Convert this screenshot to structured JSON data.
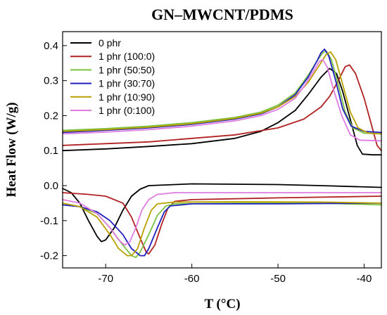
{
  "chart_data": {
    "type": "line",
    "title": "GN–MWCNT/PDMS",
    "xlabel": "T (°C)",
    "ylabel": "Heat Flow (W/g)",
    "xlim": [
      -75,
      -38
    ],
    "ylim": [
      -0.235,
      0.44
    ],
    "xticks": [
      -70,
      -60,
      -50,
      -40
    ],
    "xtick_labels": [
      "-70",
      "-60",
      "-50",
      "-40"
    ],
    "yticks": [
      -0.2,
      -0.1,
      0.0,
      0.1,
      0.2,
      0.3,
      0.4
    ],
    "ytick_labels": [
      "-0.2",
      "-0.1",
      "0.0",
      "0.1",
      "0.2",
      "0.3",
      "0.4"
    ],
    "grid": false,
    "legend": {
      "position": "top-left"
    },
    "series": [
      {
        "name": "0 phr",
        "color": "#000000",
        "heating": [
          [
            -75,
            0.1
          ],
          [
            -70,
            0.105
          ],
          [
            -65,
            0.112
          ],
          [
            -60,
            0.12
          ],
          [
            -55,
            0.135
          ],
          [
            -52,
            0.155
          ],
          [
            -50,
            0.18
          ],
          [
            -48,
            0.215
          ],
          [
            -46.5,
            0.26
          ],
          [
            -45,
            0.31
          ],
          [
            -44,
            0.335
          ],
          [
            -43.2,
            0.32
          ],
          [
            -42.5,
            0.27
          ],
          [
            -41.5,
            0.18
          ],
          [
            -40.8,
            0.115
          ],
          [
            -40.2,
            0.09
          ],
          [
            -39,
            0.088
          ],
          [
            -38,
            0.088
          ]
        ],
        "cooling": [
          [
            -75,
            -0.008
          ],
          [
            -74,
            -0.02
          ],
          [
            -73,
            -0.05
          ],
          [
            -72,
            -0.1
          ],
          [
            -71,
            -0.145
          ],
          [
            -70.5,
            -0.16
          ],
          [
            -70,
            -0.155
          ],
          [
            -69,
            -0.12
          ],
          [
            -68,
            -0.07
          ],
          [
            -67,
            -0.03
          ],
          [
            -66,
            -0.01
          ],
          [
            -65,
            0.0
          ],
          [
            -60,
            0.005
          ],
          [
            -50,
            0.003
          ],
          [
            -45,
            0.0
          ],
          [
            -38,
            -0.005
          ]
        ]
      },
      {
        "name": "1 phr (100:0)",
        "color": "#b22222",
        "heating": [
          [
            -75,
            0.115
          ],
          [
            -70,
            0.12
          ],
          [
            -65,
            0.125
          ],
          [
            -60,
            0.135
          ],
          [
            -55,
            0.145
          ],
          [
            -50,
            0.165
          ],
          [
            -47,
            0.19
          ],
          [
            -45,
            0.225
          ],
          [
            -44,
            0.255
          ],
          [
            -43,
            0.3
          ],
          [
            -42.2,
            0.34
          ],
          [
            -41.7,
            0.345
          ],
          [
            -41,
            0.32
          ],
          [
            -40,
            0.25
          ],
          [
            -39,
            0.16
          ],
          [
            -38.5,
            0.115
          ],
          [
            -38,
            0.1
          ]
        ],
        "cooling": [
          [
            -75,
            -0.02
          ],
          [
            -72,
            -0.025
          ],
          [
            -70,
            -0.03
          ],
          [
            -68,
            -0.05
          ],
          [
            -67,
            -0.09
          ],
          [
            -66,
            -0.15
          ],
          [
            -65.3,
            -0.19
          ],
          [
            -65,
            -0.195
          ],
          [
            -64.3,
            -0.17
          ],
          [
            -63.5,
            -0.11
          ],
          [
            -62.8,
            -0.065
          ],
          [
            -62,
            -0.045
          ],
          [
            -60,
            -0.04
          ],
          [
            -50,
            -0.035
          ],
          [
            -38,
            -0.03
          ]
        ]
      },
      {
        "name": "1 phr (50:50)",
        "color": "#7cc242",
        "heating": [
          [
            -75,
            0.158
          ],
          [
            -70,
            0.163
          ],
          [
            -65,
            0.17
          ],
          [
            -60,
            0.18
          ],
          [
            -55,
            0.195
          ],
          [
            -52,
            0.21
          ],
          [
            -50,
            0.23
          ],
          [
            -48,
            0.265
          ],
          [
            -46.5,
            0.315
          ],
          [
            -45.5,
            0.355
          ],
          [
            -44.8,
            0.38
          ],
          [
            -44.4,
            0.385
          ],
          [
            -43.8,
            0.36
          ],
          [
            -43,
            0.29
          ],
          [
            -42.2,
            0.21
          ],
          [
            -41.3,
            0.165
          ],
          [
            -40,
            0.15
          ],
          [
            -38,
            0.148
          ]
        ],
        "cooling": [
          [
            -75,
            -0.055
          ],
          [
            -73,
            -0.06
          ],
          [
            -71,
            -0.08
          ],
          [
            -69.5,
            -0.12
          ],
          [
            -68,
            -0.17
          ],
          [
            -67,
            -0.2
          ],
          [
            -66.5,
            -0.205
          ],
          [
            -66,
            -0.19
          ],
          [
            -65,
            -0.14
          ],
          [
            -64,
            -0.085
          ],
          [
            -63,
            -0.058
          ],
          [
            -62,
            -0.052
          ],
          [
            -55,
            -0.05
          ],
          [
            -45,
            -0.05
          ],
          [
            -38,
            -0.055
          ]
        ]
      },
      {
        "name": "1 phr (30:70)",
        "color": "#1f1fbf",
        "heating": [
          [
            -75,
            0.152
          ],
          [
            -70,
            0.158
          ],
          [
            -65,
            0.165
          ],
          [
            -60,
            0.175
          ],
          [
            -55,
            0.19
          ],
          [
            -52,
            0.205
          ],
          [
            -50,
            0.225
          ],
          [
            -48,
            0.26
          ],
          [
            -46.5,
            0.31
          ],
          [
            -45.5,
            0.355
          ],
          [
            -45,
            0.38
          ],
          [
            -44.6,
            0.39
          ],
          [
            -44.1,
            0.37
          ],
          [
            -43.3,
            0.3
          ],
          [
            -42.5,
            0.22
          ],
          [
            -41.5,
            0.17
          ],
          [
            -40,
            0.155
          ],
          [
            -38,
            0.152
          ]
        ],
        "cooling": [
          [
            -75,
            -0.055
          ],
          [
            -73,
            -0.06
          ],
          [
            -71,
            -0.075
          ],
          [
            -69.5,
            -0.1
          ],
          [
            -68,
            -0.14
          ],
          [
            -67,
            -0.18
          ],
          [
            -66,
            -0.2
          ],
          [
            -65.5,
            -0.2
          ],
          [
            -65,
            -0.18
          ],
          [
            -64,
            -0.12
          ],
          [
            -63.2,
            -0.075
          ],
          [
            -62.5,
            -0.058
          ],
          [
            -60,
            -0.052
          ],
          [
            -50,
            -0.052
          ],
          [
            -38,
            -0.05
          ]
        ]
      },
      {
        "name": "1 phr (10:90)",
        "color": "#b8a000",
        "heating": [
          [
            -75,
            0.155
          ],
          [
            -70,
            0.16
          ],
          [
            -65,
            0.167
          ],
          [
            -60,
            0.177
          ],
          [
            -55,
            0.192
          ],
          [
            -52,
            0.207
          ],
          [
            -50,
            0.225
          ],
          [
            -48,
            0.255
          ],
          [
            -46.5,
            0.295
          ],
          [
            -45.3,
            0.34
          ],
          [
            -44.4,
            0.375
          ],
          [
            -43.9,
            0.382
          ],
          [
            -43.3,
            0.36
          ],
          [
            -42.5,
            0.29
          ],
          [
            -41.6,
            0.21
          ],
          [
            -40.7,
            0.165
          ],
          [
            -39.5,
            0.15
          ],
          [
            -38,
            0.148
          ]
        ],
        "cooling": [
          [
            -75,
            -0.05
          ],
          [
            -73,
            -0.06
          ],
          [
            -71,
            -0.09
          ],
          [
            -69.5,
            -0.14
          ],
          [
            -68.5,
            -0.18
          ],
          [
            -67.5,
            -0.2
          ],
          [
            -67,
            -0.2
          ],
          [
            -66.3,
            -0.18
          ],
          [
            -65.5,
            -0.12
          ],
          [
            -64.7,
            -0.07
          ],
          [
            -64,
            -0.052
          ],
          [
            -62,
            -0.047
          ],
          [
            -55,
            -0.046
          ],
          [
            -45,
            -0.047
          ],
          [
            -38,
            -0.05
          ]
        ]
      },
      {
        "name": "1 phr (0:100)",
        "color": "#e07be0",
        "heating": [
          [
            -75,
            0.148
          ],
          [
            -70,
            0.153
          ],
          [
            -65,
            0.16
          ],
          [
            -60,
            0.17
          ],
          [
            -55,
            0.185
          ],
          [
            -52,
            0.2
          ],
          [
            -50,
            0.218
          ],
          [
            -48,
            0.25
          ],
          [
            -46.8,
            0.29
          ],
          [
            -45.8,
            0.33
          ],
          [
            -45.2,
            0.355
          ],
          [
            -44.8,
            0.36
          ],
          [
            -44.3,
            0.34
          ],
          [
            -43.5,
            0.27
          ],
          [
            -42.6,
            0.2
          ],
          [
            -41.6,
            0.145
          ],
          [
            -40.5,
            0.13
          ],
          [
            -38,
            0.128
          ]
        ],
        "cooling": [
          [
            -75,
            -0.04
          ],
          [
            -73,
            -0.05
          ],
          [
            -71,
            -0.08
          ],
          [
            -69.5,
            -0.12
          ],
          [
            -68.5,
            -0.155
          ],
          [
            -67.8,
            -0.17
          ],
          [
            -67.2,
            -0.16
          ],
          [
            -66.5,
            -0.12
          ],
          [
            -65.8,
            -0.07
          ],
          [
            -65,
            -0.04
          ],
          [
            -64,
            -0.025
          ],
          [
            -62,
            -0.02
          ],
          [
            -55,
            -0.02
          ],
          [
            -45,
            -0.02
          ],
          [
            -38,
            -0.02
          ]
        ]
      }
    ]
  }
}
